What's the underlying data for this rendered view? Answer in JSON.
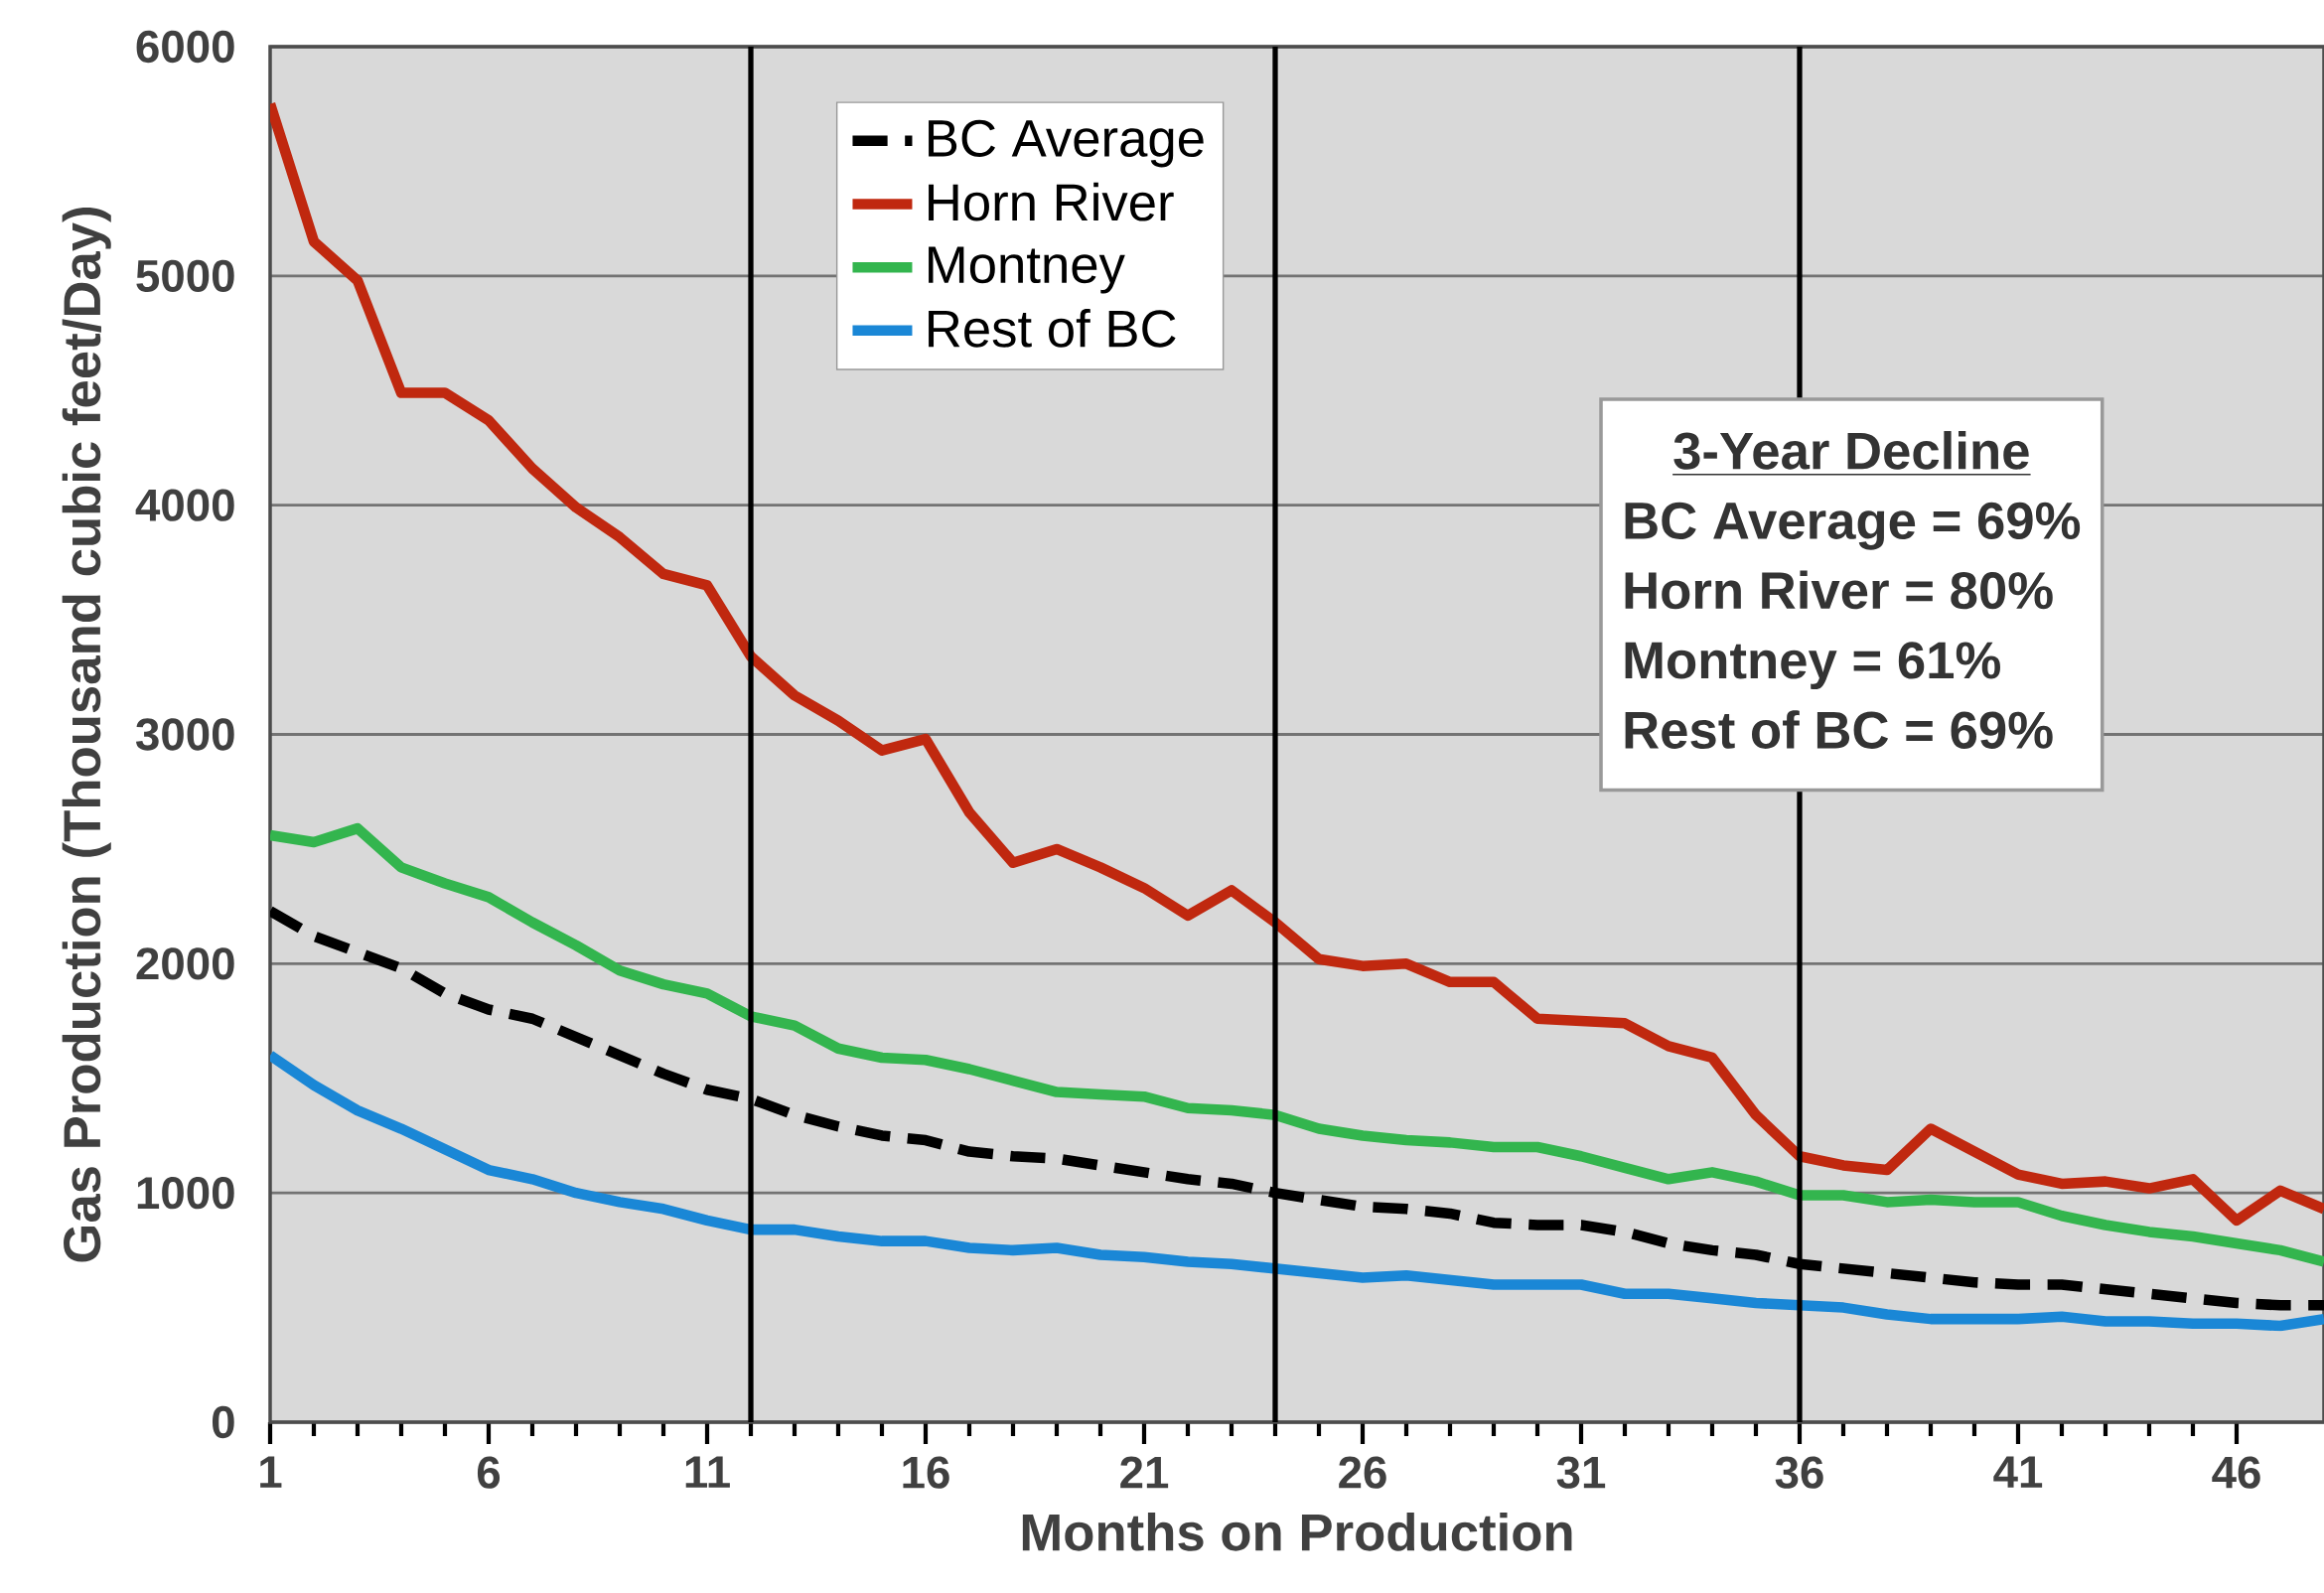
{
  "chart_data": {
    "type": "line",
    "xlabel": "Months on Production",
    "ylabel": "Gas Production (Thousand cubic feet/Day)",
    "x": [
      1,
      2,
      3,
      4,
      5,
      6,
      7,
      8,
      9,
      10,
      11,
      12,
      13,
      14,
      15,
      16,
      17,
      18,
      19,
      20,
      21,
      22,
      23,
      24,
      25,
      26,
      27,
      28,
      29,
      30,
      31,
      32,
      33,
      34,
      35,
      36,
      37,
      38,
      39,
      40,
      41,
      42,
      43,
      44,
      45,
      46,
      47,
      48
    ],
    "series": [
      {
        "name": "BC Average",
        "color": "#000000",
        "line_style": "dashed",
        "values": [
          2230,
          2120,
          2050,
          1980,
          1870,
          1800,
          1760,
          1680,
          1600,
          1520,
          1450,
          1410,
          1340,
          1290,
          1250,
          1230,
          1180,
          1160,
          1150,
          1120,
          1090,
          1060,
          1040,
          1000,
          970,
          940,
          930,
          910,
          870,
          860,
          860,
          830,
          780,
          750,
          730,
          690,
          670,
          650,
          630,
          610,
          600,
          600,
          580,
          560,
          540,
          520,
          510,
          510
        ]
      },
      {
        "name": "Horn River",
        "color": "#c0280f",
        "line_style": "solid",
        "values": [
          5750,
          5150,
          4980,
          4490,
          4490,
          4370,
          4160,
          3990,
          3860,
          3700,
          3650,
          3340,
          3170,
          3060,
          2930,
          2980,
          2660,
          2440,
          2500,
          2420,
          2330,
          2210,
          2320,
          2180,
          2020,
          1990,
          2000,
          1920,
          1920,
          1760,
          1750,
          1740,
          1640,
          1590,
          1340,
          1160,
          1120,
          1100,
          1280,
          1180,
          1080,
          1040,
          1050,
          1020,
          1060,
          880,
          1010,
          930
        ]
      },
      {
        "name": "Montney",
        "color": "#33b54e",
        "line_style": "solid",
        "values": [
          2560,
          2530,
          2590,
          2420,
          2350,
          2290,
          2180,
          2080,
          1970,
          1910,
          1870,
          1770,
          1730,
          1630,
          1590,
          1580,
          1540,
          1490,
          1440,
          1430,
          1420,
          1370,
          1360,
          1340,
          1280,
          1250,
          1230,
          1220,
          1200,
          1200,
          1160,
          1110,
          1060,
          1090,
          1050,
          990,
          990,
          960,
          970,
          960,
          960,
          900,
          860,
          830,
          810,
          780,
          750,
          700
        ]
      },
      {
        "name": "Rest of BC",
        "color": "#1a87d6",
        "line_style": "solid",
        "values": [
          1600,
          1470,
          1360,
          1280,
          1190,
          1100,
          1060,
          1000,
          960,
          930,
          880,
          840,
          840,
          810,
          790,
          790,
          760,
          750,
          760,
          730,
          720,
          700,
          690,
          670,
          650,
          630,
          640,
          620,
          600,
          600,
          600,
          560,
          560,
          540,
          520,
          510,
          500,
          470,
          450,
          450,
          450,
          460,
          440,
          440,
          430,
          430,
          420,
          450
        ]
      }
    ],
    "xlim": [
      1,
      48
    ],
    "xticks": [
      1,
      6,
      11,
      16,
      21,
      26,
      31,
      36,
      41,
      46
    ],
    "ylim": [
      0,
      6000
    ],
    "yticks": [
      0,
      1000,
      2000,
      3000,
      4000,
      5000,
      6000
    ],
    "grid": "y",
    "legend": "top",
    "ref_lines": [
      {
        "axis": "x",
        "value": 12,
        "color": "#000000"
      },
      {
        "axis": "x",
        "value": 24,
        "color": "#000000"
      },
      {
        "axis": "x",
        "value": 36,
        "color": "#000000"
      }
    ],
    "annotations": [
      "3-Year Decline",
      "BC Average = 69%",
      "Horn River = 80%",
      "Montney = 61%",
      "Rest of BC = 69%"
    ]
  }
}
